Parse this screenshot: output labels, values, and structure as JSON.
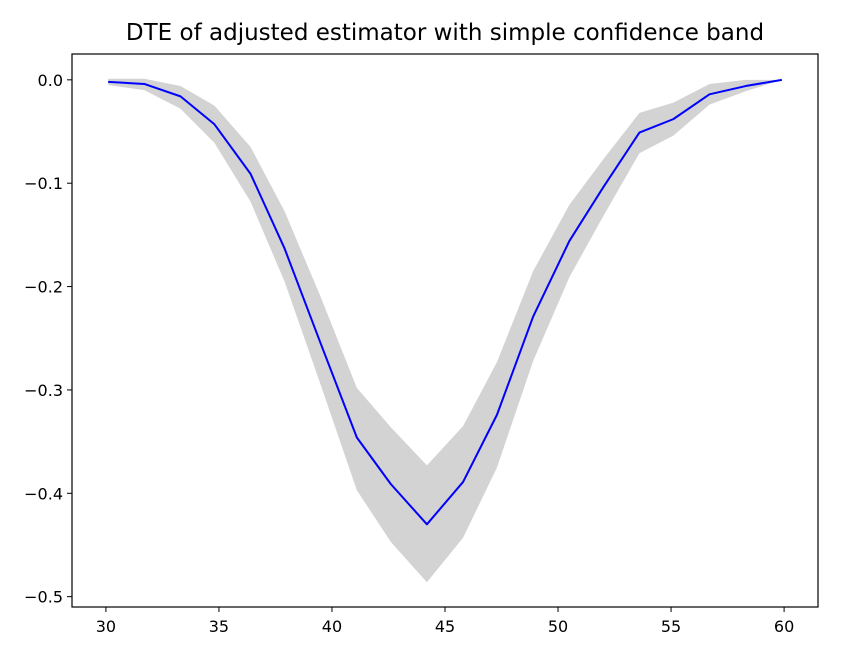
{
  "chart_data": {
    "type": "line",
    "title": "DTE of adjusted estimator with simple confidence band",
    "xlabel": "",
    "ylabel": "",
    "xlim": [
      28.5,
      61.5
    ],
    "ylim": [
      -0.51,
      0.025
    ],
    "xticks": [
      30,
      35,
      40,
      45,
      50,
      55,
      60
    ],
    "xtick_labels": [
      "30",
      "35",
      "40",
      "45",
      "50",
      "55",
      "60"
    ],
    "yticks": [
      0.0,
      -0.1,
      -0.2,
      -0.3,
      -0.4,
      -0.5
    ],
    "ytick_labels": [
      "0.0",
      "−0.1",
      "−0.2",
      "−0.3",
      "−0.4",
      "−0.5"
    ],
    "grid": false,
    "series": [
      {
        "color": "#0000ff",
        "x": [
          30.1,
          31.7,
          33.3,
          34.8,
          36.4,
          37.9,
          39.5,
          41.1,
          42.6,
          44.2,
          45.8,
          47.3,
          48.9,
          50.5,
          52.0,
          53.6,
          55.1,
          56.7,
          58.3,
          59.9
        ],
        "y": [
          -0.002,
          -0.004,
          -0.016,
          -0.043,
          -0.091,
          -0.163,
          -0.255,
          -0.346,
          -0.391,
          -0.43,
          -0.389,
          -0.324,
          -0.229,
          -0.156,
          -0.104,
          -0.051,
          -0.038,
          -0.014,
          -0.006,
          0.0
        ],
        "lower": [
          -0.005,
          -0.01,
          -0.028,
          -0.061,
          -0.118,
          -0.195,
          -0.295,
          -0.397,
          -0.447,
          -0.486,
          -0.443,
          -0.375,
          -0.272,
          -0.191,
          -0.132,
          -0.071,
          -0.054,
          -0.024,
          -0.011,
          0.0
        ],
        "upper": [
          0.001,
          0.001,
          -0.006,
          -0.025,
          -0.065,
          -0.127,
          -0.21,
          -0.298,
          -0.336,
          -0.373,
          -0.335,
          -0.273,
          -0.185,
          -0.121,
          -0.077,
          -0.032,
          -0.022,
          -0.004,
          0.0,
          0.0
        ]
      }
    ],
    "band_color": "#d3d3d3",
    "line_color": "#0000ff"
  }
}
